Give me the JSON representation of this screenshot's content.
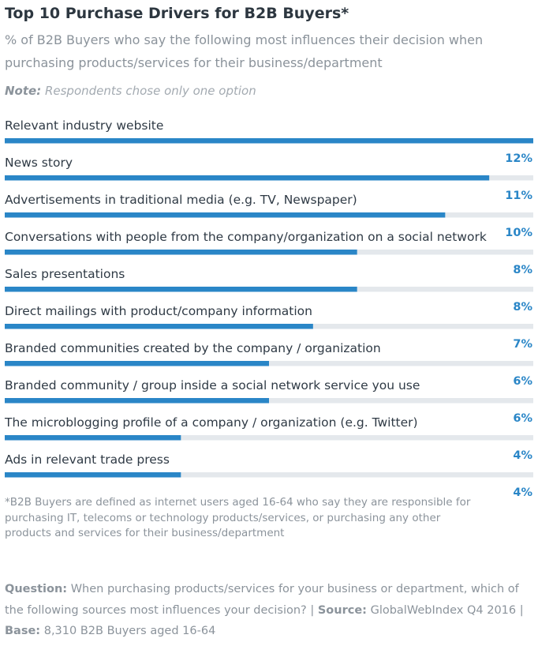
{
  "header": {
    "title": "Top 10 Purchase Drivers for B2B Buyers*",
    "subtitle": "% of B2B Buyers who say the following most influences their decision when purchasing products/services for their business/department",
    "note_label": "Note:",
    "note_text": " Respondents chose only one option"
  },
  "chart_data": {
    "type": "bar",
    "orientation": "horizontal",
    "categories": [
      "Relevant industry website",
      "News story",
      "Advertisements in traditional media (e.g. TV, Newspaper)",
      "Conversations with people from the company/organization on a social network",
      "Sales presentations",
      "Direct mailings with product/company information",
      "Branded communities created by the company / organization",
      "Branded community / group inside a social network service you use",
      "The microblogging profile of a company / organization (e.g. Twitter)",
      "Ads in relevant trade press"
    ],
    "values": [
      12,
      11,
      10,
      8,
      8,
      7,
      6,
      6,
      4,
      4
    ],
    "value_labels": [
      "12%",
      "11%",
      "10%",
      "8%",
      "8%",
      "7%",
      "6%",
      "6%",
      "4%",
      "4%"
    ],
    "unit": "%",
    "xlim": [
      0,
      12
    ],
    "grid": false,
    "legend": "none",
    "colors": {
      "bar": "#2a86c7",
      "track": "#e4e8ec",
      "value_label": "#2a86c7"
    }
  },
  "footnote": "*B2B Buyers are defined as internet users aged 16-64 who say they are responsible for purchasing IT, telecoms or technology products/services, or purchasing any other products and services for their business/department",
  "footer": {
    "question_label": "Question:",
    "question_text": " When purchasing products/services for your business or department, which of the following sources most influences your decision?",
    "separator": " | ",
    "source_label": "Source:",
    "source_text": " GlobalWebIndex Q4 2016",
    "base_label": "Base:",
    "base_text": " 8,310 B2B Buyers aged 16-64"
  }
}
